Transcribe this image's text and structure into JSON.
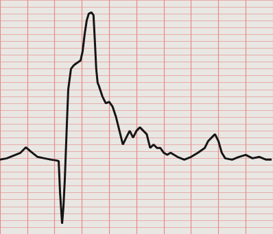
{
  "chart_data": {
    "type": "line",
    "x": [
      0,
      10,
      20,
      30,
      38,
      45,
      55,
      65,
      75,
      82,
      86,
      88,
      91,
      93,
      95,
      98,
      100,
      104,
      108,
      112,
      118,
      121,
      124,
      127,
      130,
      134,
      137,
      139,
      141,
      143,
      145,
      150,
      155,
      160,
      165,
      170,
      175,
      180,
      185,
      190,
      195,
      200,
      205,
      210,
      215,
      220,
      225,
      230,
      235,
      240,
      245,
      250,
      255,
      260,
      270,
      280,
      290,
      300,
      305,
      310,
      315,
      320,
      325,
      330,
      340,
      350,
      360,
      370,
      380,
      390,
      398
    ],
    "values": [
      108,
      110,
      114,
      118,
      126,
      120,
      112,
      110,
      108,
      107,
      106,
      60,
      15,
      40,
      80,
      160,
      210,
      240,
      245,
      248,
      252,
      265,
      290,
      310,
      320,
      322,
      318,
      280,
      240,
      220,
      215,
      200,
      190,
      192,
      185,
      170,
      150,
      130,
      140,
      150,
      140,
      150,
      155,
      150,
      145,
      125,
      130,
      125,
      125,
      118,
      115,
      118,
      115,
      112,
      108,
      112,
      118,
      125,
      135,
      140,
      145,
      135,
      118,
      110,
      108,
      112,
      115,
      110,
      112,
      108,
      108
    ],
    "color": "#151515",
    "xlim": [
      0,
      400
    ],
    "ylim": [
      0,
      340
    ],
    "xticks": [
      0,
      40,
      80,
      120,
      160,
      200,
      240,
      280,
      320,
      360,
      400
    ],
    "yticks": [
      0,
      10,
      20,
      30,
      40,
      50,
      60,
      70,
      80,
      90,
      100,
      110,
      120,
      130,
      140,
      150,
      160,
      170,
      180,
      190,
      200,
      210,
      220,
      230,
      240,
      250,
      260,
      270,
      280,
      290,
      300,
      310,
      320,
      330,
      340
    ],
    "grid": true,
    "tick_labels": false
  }
}
